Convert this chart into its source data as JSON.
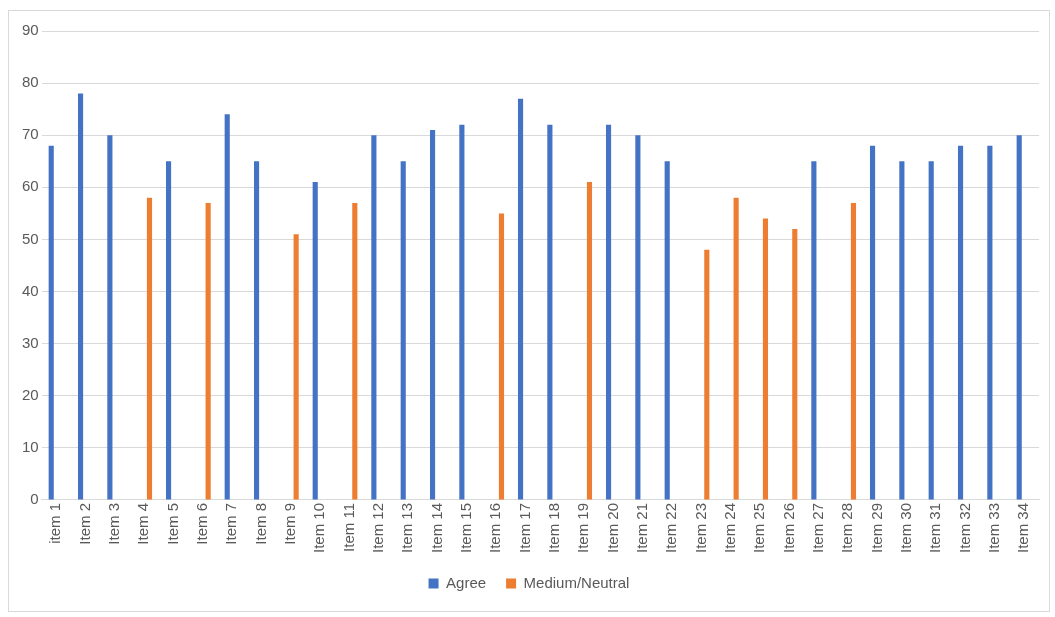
{
  "chart_data": {
    "type": "bar",
    "categories": [
      "item 1",
      "Item 2",
      "Item 3",
      "Item 4",
      "Item 5",
      "Item 6",
      "Item 7",
      "Item 8",
      "Item 9",
      "Item 10",
      "Item 11",
      "Item 12",
      "Item 13",
      "Item 14",
      "Item 15",
      "Item 16",
      "Item 17",
      "Item 18",
      "Item 19",
      "Item 20",
      "Item 21",
      "Item 22",
      "Item 23",
      "Item 24",
      "Item 25",
      "Item 26",
      "Item 27",
      "Item 28",
      "Item 29",
      "Item 30",
      "Item 31",
      "Item 32",
      "Item 33",
      "Item 34"
    ],
    "series": [
      {
        "name": "Agree",
        "color": "#4472c4",
        "values": [
          68,
          78,
          70,
          null,
          65,
          null,
          74,
          65,
          null,
          61,
          null,
          70,
          65,
          71,
          72,
          null,
          77,
          72,
          null,
          72,
          70,
          65,
          null,
          null,
          null,
          null,
          65,
          null,
          68,
          65,
          65,
          68,
          68,
          70
        ]
      },
      {
        "name": "Medium/Neutral",
        "color": "#ed7d31",
        "values": [
          null,
          null,
          null,
          58,
          null,
          57,
          null,
          null,
          51,
          null,
          57,
          null,
          null,
          null,
          null,
          55,
          null,
          null,
          61,
          null,
          null,
          null,
          48,
          58,
          54,
          52,
          null,
          57,
          null,
          null,
          null,
          null,
          null,
          null
        ]
      }
    ],
    "ylim": [
      0,
      90
    ],
    "yticks": [
      0,
      10,
      20,
      30,
      40,
      50,
      60,
      70,
      80,
      90
    ],
    "grid": "y",
    "legend": "bottom"
  }
}
